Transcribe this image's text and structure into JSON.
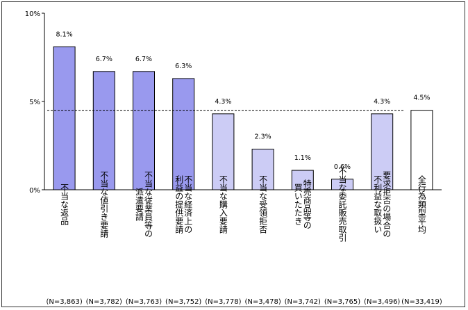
{
  "chart_data": {
    "type": "bar",
    "categories": [
      "不当な返品",
      "不当な値引き要請",
      "不当な従業員等の派遣要請",
      "不当な経済上の利益の提供要請",
      "不当な購入要請",
      "不当な受領拒否",
      "特売商品等の買いたたき",
      "不当な委託販売取引",
      "要求拒否の場合の不利益な取扱い",
      "全行為類型平均"
    ],
    "category_columns": [
      [
        "不当な返品"
      ],
      [
        "不当な値引き要請"
      ],
      [
        "派遣要請",
        "不当な従業員等の"
      ],
      [
        "利益の提供要請",
        "不当な経済上の"
      ],
      [
        "不当な購入要請"
      ],
      [
        "不当な受領拒否"
      ],
      [
        "買いたたき",
        "特売商品等の"
      ],
      [
        "不当な委託販売取引"
      ],
      [
        "不利益な取扱い",
        "要求拒否の場合の"
      ],
      [
        "全行為類型平均"
      ]
    ],
    "values": [
      8.1,
      6.7,
      6.7,
      6.3,
      4.3,
      2.3,
      1.1,
      0.6,
      4.3,
      4.5
    ],
    "value_labels": [
      "8.1%",
      "6.7%",
      "6.7%",
      "6.3%",
      "4.3%",
      "2.3%",
      "1.1%",
      "0.6%",
      "4.3%",
      "4.5%"
    ],
    "n_labels": [
      "(N=3,863)",
      "(N=3,782)",
      "(N=3,763)",
      "(N=3,752)",
      "(N=3,778)",
      "(N=3,478)",
      "(N=3,742)",
      "(N=3,765)",
      "(N=3,496)",
      "(N=33,419)"
    ],
    "bar_colors": [
      "#9999ee",
      "#9999ee",
      "#9999ee",
      "#9999ee",
      "#ccccf5",
      "#ccccf5",
      "#ccccf5",
      "#ccccf5",
      "#ccccf5",
      "#ffffff"
    ],
    "ylim": [
      0,
      10
    ],
    "yticks": [
      0,
      5,
      10
    ],
    "ytick_labels": [
      "0%",
      "5%",
      "10%"
    ],
    "reference_line": 4.5,
    "grid": false,
    "title": "",
    "xlabel": "",
    "ylabel": ""
  }
}
